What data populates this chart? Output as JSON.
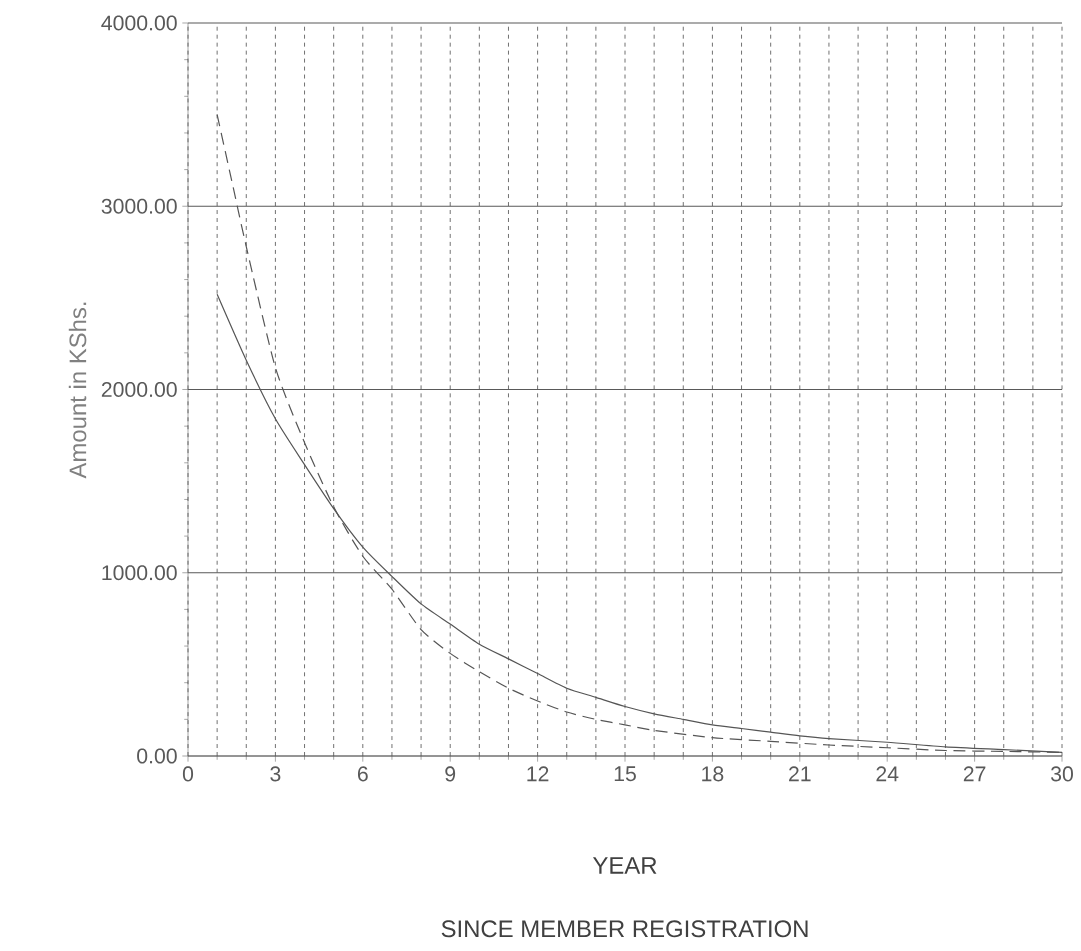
{
  "chart_data": {
    "type": "line",
    "xlabel": "YEAR",
    "ylabel": "Amount in KShs.",
    "annotations": [
      "SINCE MEMBER REGISTRATION"
    ],
    "x": [
      1,
      2,
      3,
      4,
      5,
      6,
      7,
      8,
      9,
      10,
      11,
      12,
      13,
      14,
      15,
      16,
      17,
      18,
      19,
      20,
      21,
      22,
      24,
      26,
      28,
      30
    ],
    "series": [
      {
        "color": "#555555",
        "line_style": "solid",
        "values": [
          2520,
          2160,
          1840,
          1590,
          1350,
          1140,
          980,
          830,
          720,
          610,
          530,
          450,
          370,
          320,
          270,
          230,
          200,
          170,
          150,
          130,
          110,
          95,
          75,
          50,
          35,
          20
        ]
      },
      {
        "color": "#555555",
        "line_style": "dashed",
        "x": [
          1,
          1.5,
          2,
          3,
          4,
          5,
          6,
          7,
          8,
          9,
          10,
          11,
          12,
          13,
          14,
          15,
          16,
          18,
          20,
          22,
          24,
          26,
          28,
          30
        ],
        "values": [
          3500,
          3140,
          2780,
          2120,
          1710,
          1360,
          1090,
          910,
          690,
          560,
          460,
          370,
          300,
          240,
          200,
          170,
          140,
          100,
          80,
          60,
          45,
          30,
          25,
          20
        ]
      }
    ],
    "xlim": [
      0,
      30
    ],
    "xticks": [
      0,
      3,
      6,
      9,
      12,
      15,
      18,
      21,
      24,
      27,
      30
    ],
    "ylim": [
      0,
      4000
    ],
    "yticks": [
      {
        "value": 0,
        "label": "0.00"
      },
      {
        "value": 1000,
        "label": "1000.00"
      },
      {
        "value": 2000,
        "label": "2000.00"
      },
      {
        "value": 3000,
        "label": "3000.00"
      },
      {
        "value": 4000,
        "label": "4000.00"
      }
    ],
    "grid": true,
    "marker": "none"
  }
}
